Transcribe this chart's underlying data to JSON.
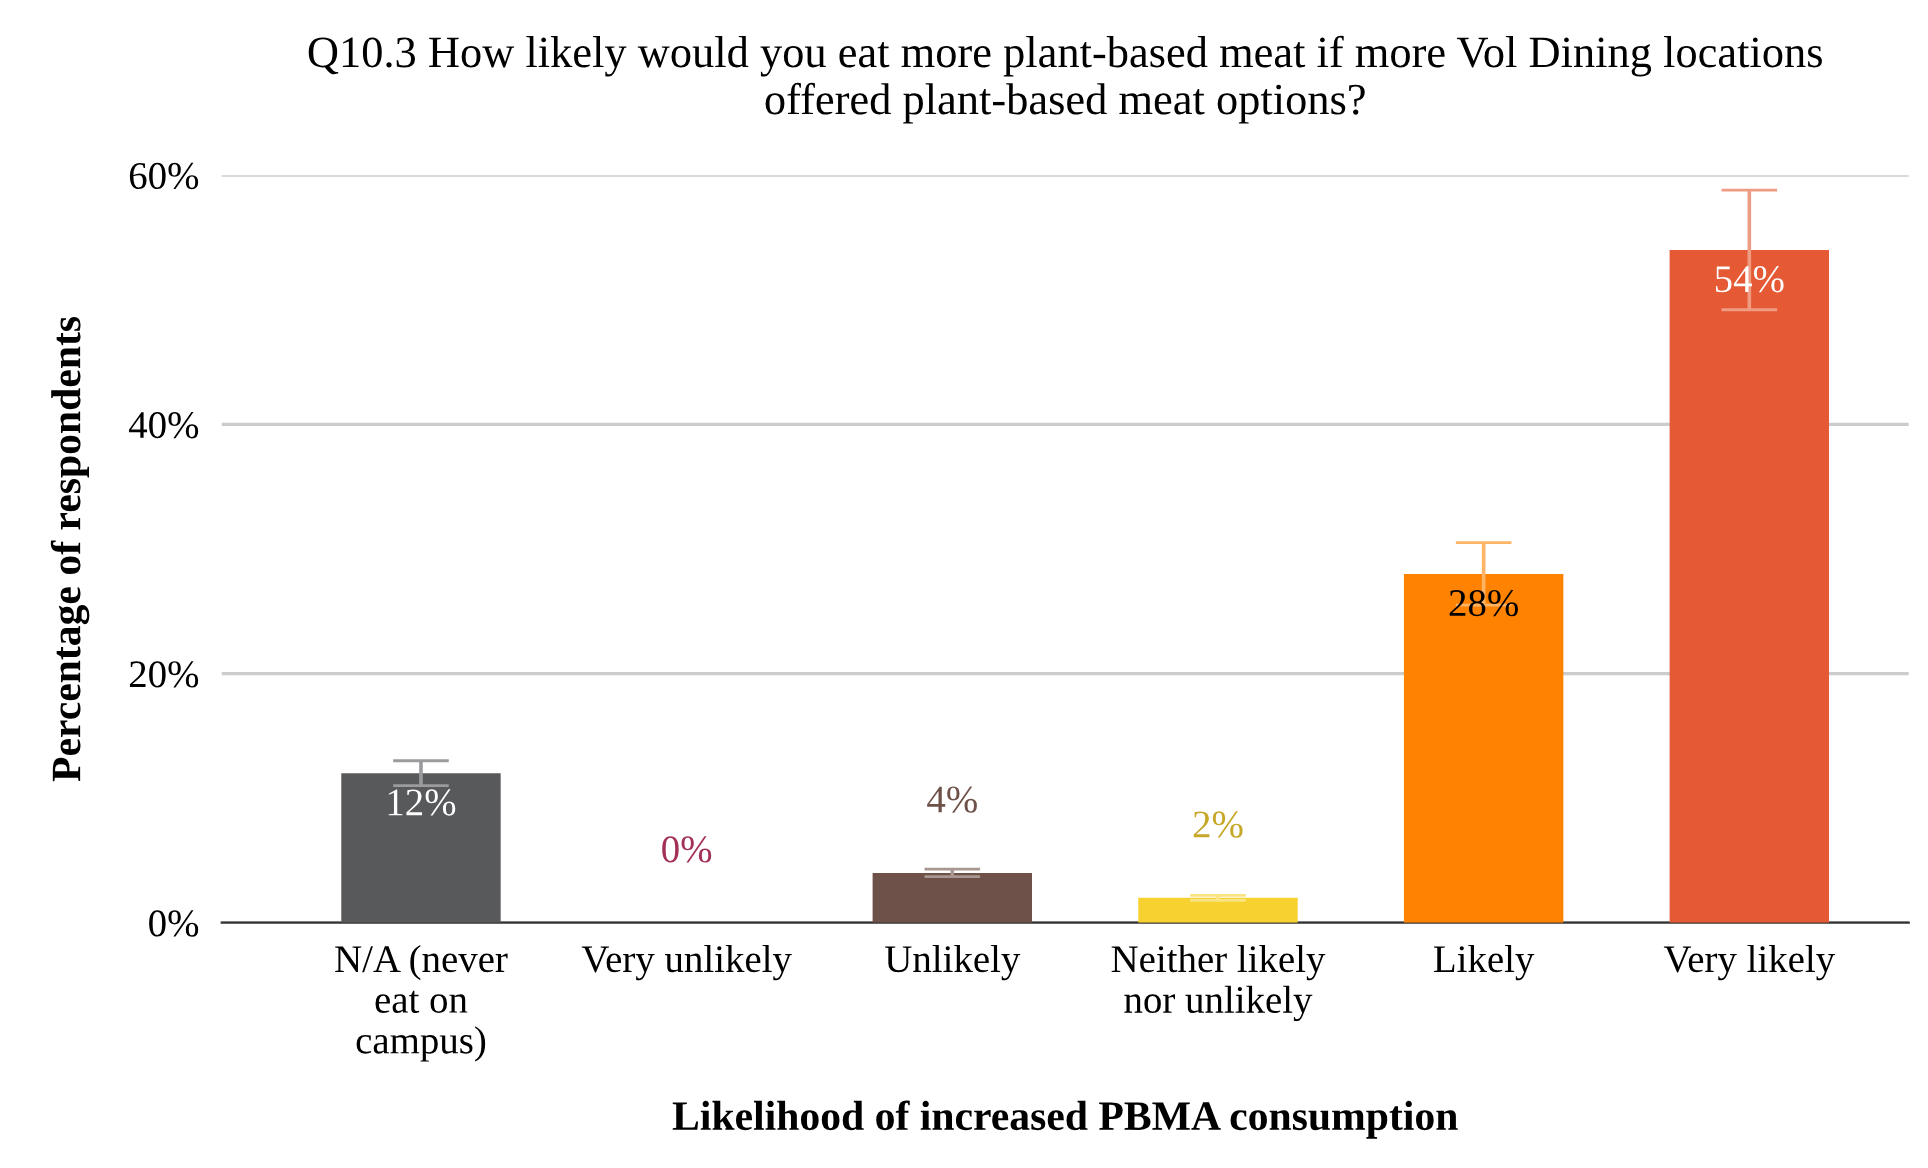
{
  "chart_data": {
    "type": "bar",
    "title": "Q10.3 How likely would you eat more plant-based meat if more Vol Dining locations\noffered plant-based meat options?",
    "xlabel": "Likelihood of increased PBMA consumption",
    "ylabel": "Percentage of respondents",
    "categories": [
      "N/A (never\neat on\ncampus)",
      "Very unlikely",
      "Unlikely",
      "Neither likely\nnor unlikely",
      "Likely",
      "Very likely"
    ],
    "values": [
      12,
      0,
      4,
      2,
      28,
      54
    ],
    "colors": [
      "#58595b",
      "#a33157",
      "#6e5148",
      "#f7d12f",
      "#ff8200",
      "#e55a34"
    ],
    "errors": [
      1,
      null,
      0.3,
      0.2,
      2.5,
      4.8
    ],
    "value_labels": [
      "12%",
      "0%",
      "4%",
      "2%",
      "28%",
      "54%"
    ],
    "ylim": [
      0,
      60
    ],
    "yticks": [
      {
        "value": 0,
        "label": "0%"
      },
      {
        "value": 20,
        "label": "20%"
      },
      {
        "value": 40,
        "label": "40%"
      },
      {
        "value": 60,
        "label": "60%"
      }
    ],
    "grid": "y",
    "legend": false
  }
}
